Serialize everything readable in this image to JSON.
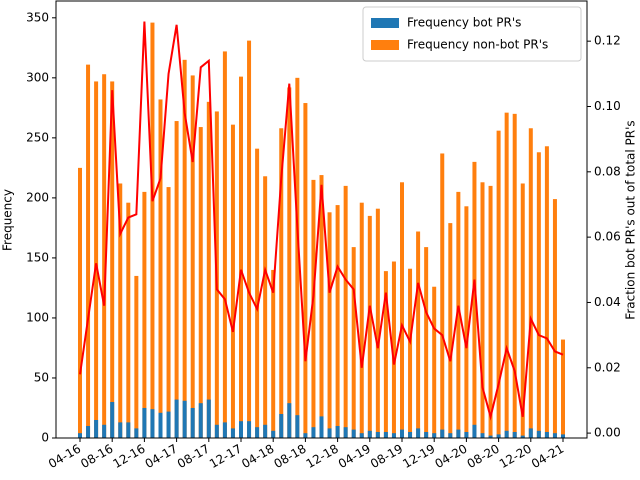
{
  "chart_data": {
    "type": "bar",
    "categories": [
      "04-16",
      null,
      null,
      null,
      "08-16",
      null,
      null,
      null,
      "12-16",
      null,
      null,
      null,
      "04-17",
      null,
      null,
      null,
      "08-17",
      null,
      null,
      null,
      "12-17",
      null,
      null,
      null,
      "04-18",
      null,
      null,
      null,
      "08-18",
      null,
      null,
      null,
      "12-18",
      null,
      null,
      null,
      "04-19",
      null,
      null,
      null,
      "08-19",
      null,
      null,
      null,
      "12-19",
      null,
      null,
      null,
      "04-20",
      null,
      null,
      null,
      "08-20",
      null,
      null,
      null,
      "12-20",
      null,
      null,
      null,
      "04-21"
    ],
    "series": [
      {
        "name": "Frequency non-bot PR's",
        "type": "bar",
        "color": "#ff7f0e",
        "values": [
          225,
          311,
          297,
          303,
          297,
          212,
          196,
          135,
          205,
          346,
          282,
          209,
          264,
          315,
          302,
          259,
          280,
          272,
          322,
          261,
          301,
          331,
          241,
          218,
          140,
          258,
          292,
          300,
          279,
          215,
          219,
          188,
          194,
          210,
          159,
          196,
          185,
          191,
          139,
          147,
          213,
          141,
          172,
          159,
          126,
          237,
          179,
          205,
          193,
          230,
          213,
          210,
          256,
          271,
          270,
          212,
          258,
          238,
          243,
          199,
          82
        ]
      },
      {
        "name": "Frequency bot PR's",
        "type": "bar",
        "color": "#1f77b4",
        "values": [
          4,
          10,
          15,
          11,
          30,
          13,
          13,
          8,
          25,
          24,
          21,
          22,
          32,
          31,
          25,
          29,
          32,
          11,
          13,
          8,
          14,
          14,
          9,
          11,
          6,
          20,
          29,
          19,
          4,
          9,
          18,
          8,
          10,
          9,
          7,
          4,
          6,
          5,
          5,
          4,
          7,
          5,
          8,
          5,
          4,
          7,
          4,
          7,
          5,
          11,
          4,
          2,
          3,
          6,
          5,
          2,
          8,
          6,
          5,
          4,
          3
        ]
      },
      {
        "type": "line",
        "axis": "y2",
        "color": "#ff0000",
        "values": [
          0.018,
          0.035,
          0.052,
          0.039,
          0.105,
          0.061,
          0.066,
          0.067,
          0.126,
          0.071,
          0.078,
          0.11,
          0.125,
          0.098,
          0.083,
          0.112,
          0.114,
          0.044,
          0.041,
          0.031,
          0.05,
          0.043,
          0.038,
          0.05,
          0.043,
          0.078,
          0.107,
          0.063,
          0.022,
          0.042,
          0.076,
          0.043,
          0.051,
          0.047,
          0.044,
          0.02,
          0.039,
          0.026,
          0.043,
          0.021,
          0.033,
          0.028,
          0.046,
          0.037,
          0.032,
          0.03,
          0.022,
          0.039,
          0.026,
          0.047,
          0.014,
          0.005,
          0.015,
          0.026,
          0.019,
          0.005,
          0.035,
          0.03,
          0.029,
          0.025,
          0.024
        ]
      }
    ],
    "ylabel": "Frequency",
    "y2label": "Fraction bot PR's out of total PR's",
    "ylim": [
      0,
      364
    ],
    "yticks": [
      0,
      50,
      100,
      150,
      200,
      250,
      300,
      350
    ],
    "y2lim": [
      -0.0015,
      0.1323
    ],
    "y2ticks": [
      {
        "value": 0,
        "label": "0.00"
      },
      {
        "value": 0.02,
        "label": "0.02"
      },
      {
        "value": 0.04,
        "label": "0.04"
      },
      {
        "value": 0.06,
        "label": "0.06"
      },
      {
        "value": 0.08,
        "label": "0.08"
      },
      {
        "value": 0.1,
        "label": "0.10"
      },
      {
        "value": 0.12,
        "label": "0.12"
      }
    ],
    "legend": "upper right"
  }
}
